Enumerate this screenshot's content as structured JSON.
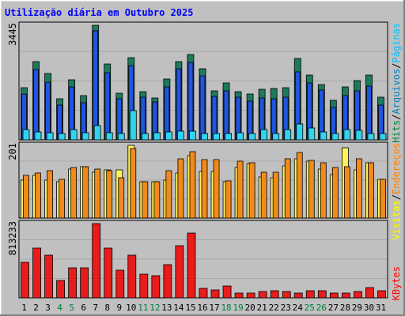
{
  "title": "Utilização diária em Outubro 2025",
  "colors": {
    "background": "#c0c0c0",
    "title": "#0000ff",
    "hits": "#008040",
    "files": "#0080c0",
    "pages": "#00c0ff",
    "visits": "#ff8000",
    "sites": "#ffff00",
    "kbytes": "#ff0000",
    "weekend": "#008040",
    "day": "#000000",
    "separator": "#000000",
    "hits_fill": "#1e7a5c",
    "files_fill": "#1f55e0",
    "pages_fill": "#2fd4ee",
    "visits_fill": "#f08a1c",
    "sites_fill": "#fcf35a",
    "kbytes_fill": "#ea1b1b"
  },
  "right_labels": {
    "top": [
      {
        "text": "Hits",
        "color": "hits"
      },
      {
        "text": "/",
        "color": "separator"
      },
      {
        "text": "Arquivos",
        "color": "files"
      },
      {
        "text": "/",
        "color": "separator"
      },
      {
        "text": "Páginas",
        "color": "pages"
      }
    ],
    "mid": [
      {
        "text": "Visitas",
        "color": "sites"
      },
      {
        "text": "/",
        "color": "separator"
      },
      {
        "text": "Endereços",
        "color": "visits"
      }
    ],
    "bottom": [
      {
        "text": "KBytes",
        "color": "kbytes"
      }
    ]
  },
  "chart_data": [
    {
      "type": "bar",
      "panel": "top",
      "ymax_label": "3445",
      "ylim": [
        0,
        3445
      ],
      "x": [
        1,
        2,
        3,
        4,
        5,
        6,
        7,
        8,
        9,
        10,
        11,
        12,
        13,
        14,
        15,
        16,
        17,
        18,
        19,
        20,
        21,
        22,
        23,
        24,
        25,
        26,
        27,
        28,
        29,
        30,
        31
      ],
      "series": [
        {
          "name": "Hits",
          "color": "hits_fill",
          "values": [
            1570,
            2360,
            2000,
            1230,
            1810,
            1330,
            3445,
            2290,
            1400,
            2460,
            1440,
            1270,
            1820,
            2360,
            2560,
            2140,
            1480,
            1720,
            1450,
            1380,
            1530,
            1540,
            1560,
            2440,
            1950,
            1670,
            1190,
            1600,
            1790,
            1950,
            1280
          ]
        },
        {
          "name": "Arquivos",
          "color": "files_fill",
          "values": [
            1380,
            2110,
            1740,
            1050,
            1580,
            1110,
            3290,
            2030,
            1230,
            2230,
            1280,
            1140,
            1590,
            2140,
            2320,
            1930,
            1310,
            1480,
            1290,
            1170,
            1270,
            1240,
            1290,
            2040,
            1700,
            1490,
            970,
            1330,
            1470,
            1610,
            1050
          ]
        },
        {
          "name": "Páginas",
          "color": "pages_fill",
          "values": [
            300,
            240,
            210,
            200,
            320,
            210,
            430,
            210,
            200,
            880,
            200,
            210,
            240,
            270,
            270,
            200,
            200,
            200,
            220,
            180,
            300,
            200,
            300,
            470,
            350,
            240,
            200,
            300,
            290,
            200,
            180
          ]
        }
      ]
    },
    {
      "type": "bar",
      "panel": "mid",
      "ymax_label": "201",
      "ylim": [
        0,
        201
      ],
      "x": [
        1,
        2,
        3,
        4,
        5,
        6,
        7,
        8,
        9,
        10,
        11,
        12,
        13,
        14,
        15,
        16,
        17,
        18,
        19,
        20,
        21,
        22,
        23,
        24,
        25,
        26,
        27,
        28,
        29,
        30,
        31
      ],
      "series": [
        {
          "name": "Endereços",
          "color": "visits_fill",
          "values": [
            117,
            124,
            131,
            106,
            139,
            143,
            136,
            131,
            112,
            192,
            101,
            101,
            132,
            164,
            183,
            161,
            162,
            102,
            157,
            152,
            127,
            127,
            163,
            182,
            159,
            154,
            139,
            142,
            163,
            153,
            107
          ]
        },
        {
          "name": "Visitas",
          "color": "sites_fill",
          "values": [
            104,
            118,
            104,
            101,
            136,
            142,
            127,
            133,
            133,
            201,
            101,
            100,
            105,
            124,
            173,
            129,
            128,
            100,
            139,
            150,
            114,
            112,
            145,
            163,
            158,
            135,
            121,
            194,
            133,
            153,
            106
          ]
        }
      ]
    },
    {
      "type": "bar",
      "panel": "bottom",
      "ymax_label": "813233",
      "ylim": [
        0,
        813233
      ],
      "x": [
        1,
        2,
        3,
        4,
        5,
        6,
        7,
        8,
        9,
        10,
        11,
        12,
        13,
        14,
        15,
        16,
        17,
        18,
        19,
        20,
        21,
        22,
        23,
        24,
        25,
        26,
        27,
        28,
        29,
        30,
        31
      ],
      "series": [
        {
          "name": "KBytes",
          "color": "kbytes_fill",
          "values": [
            390000,
            545000,
            463000,
            190000,
            330000,
            330000,
            813000,
            545000,
            300000,
            463000,
            263000,
            245000,
            365000,
            573000,
            710000,
            100000,
            85000,
            128000,
            55000,
            55000,
            65000,
            75000,
            65000,
            55000,
            75000,
            75000,
            55000,
            55000,
            70000,
            110000,
            75000
          ]
        }
      ],
      "days": [
        "1",
        "2",
        "3",
        "4",
        "5",
        "6",
        "7",
        "8",
        "9",
        "10",
        "11",
        "12",
        "13",
        "14",
        "15",
        "16",
        "17",
        "18",
        "19",
        "20",
        "21",
        "22",
        "23",
        "24",
        "25",
        "26",
        "27",
        "28",
        "29",
        "30",
        "31"
      ],
      "weekend_days": [
        4,
        5,
        11,
        12,
        18,
        19,
        25,
        26
      ]
    }
  ]
}
